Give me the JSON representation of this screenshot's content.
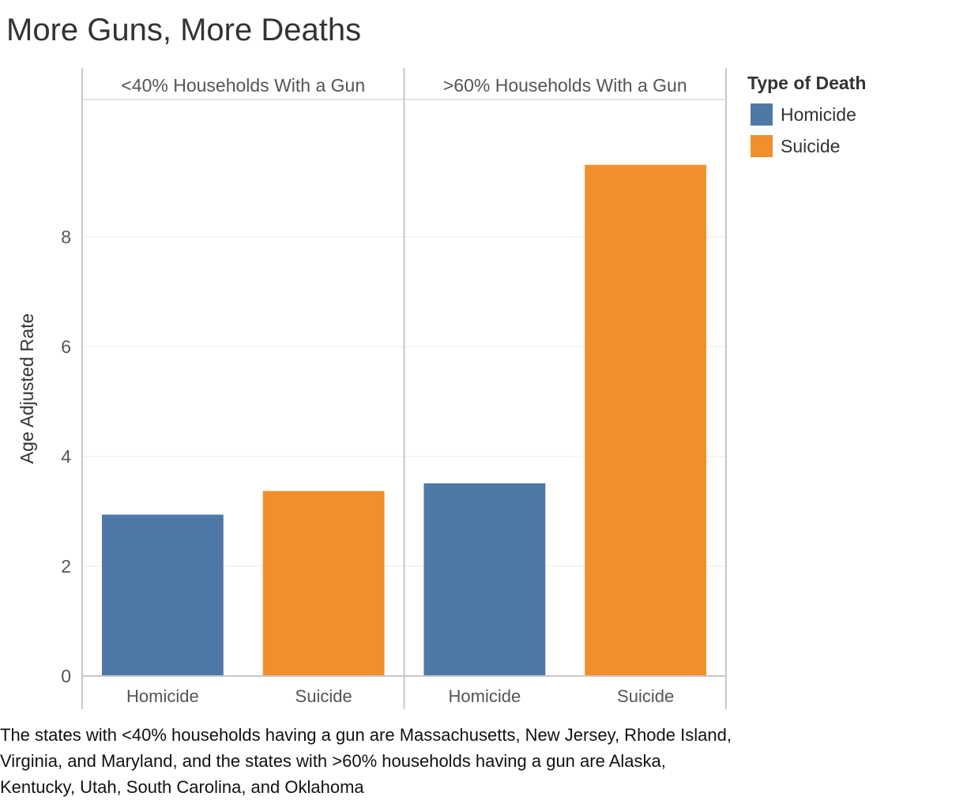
{
  "chart_data": {
    "type": "bar",
    "title": "More Guns, More Deaths",
    "ylabel": "Age Adjusted Rate",
    "xlabel": "",
    "ylim": [
      0,
      10.5
    ],
    "yticks": [
      0,
      2,
      4,
      6,
      8
    ],
    "grid": true,
    "legend_position": "top-right",
    "legend_title": "Type of Death",
    "categories": [
      "Homicide",
      "Suicide"
    ],
    "colors": {
      "Homicide": "#4e79a7",
      "Suicide": "#f28e2b"
    },
    "panels": [
      {
        "label": "<40% Households With a Gun",
        "values": [
          2.94,
          3.37
        ]
      },
      {
        "label": ">60% Households With a Gun",
        "values": [
          3.51,
          9.31
        ]
      }
    ]
  },
  "caption": "The states with <40% households having a gun are Massachusetts, New Jersey, Rhode Island, Virginia, and Maryland, and the states with >60% households having a gun are Alaska, Kentucky, Utah, South Carolina, and Oklahoma"
}
